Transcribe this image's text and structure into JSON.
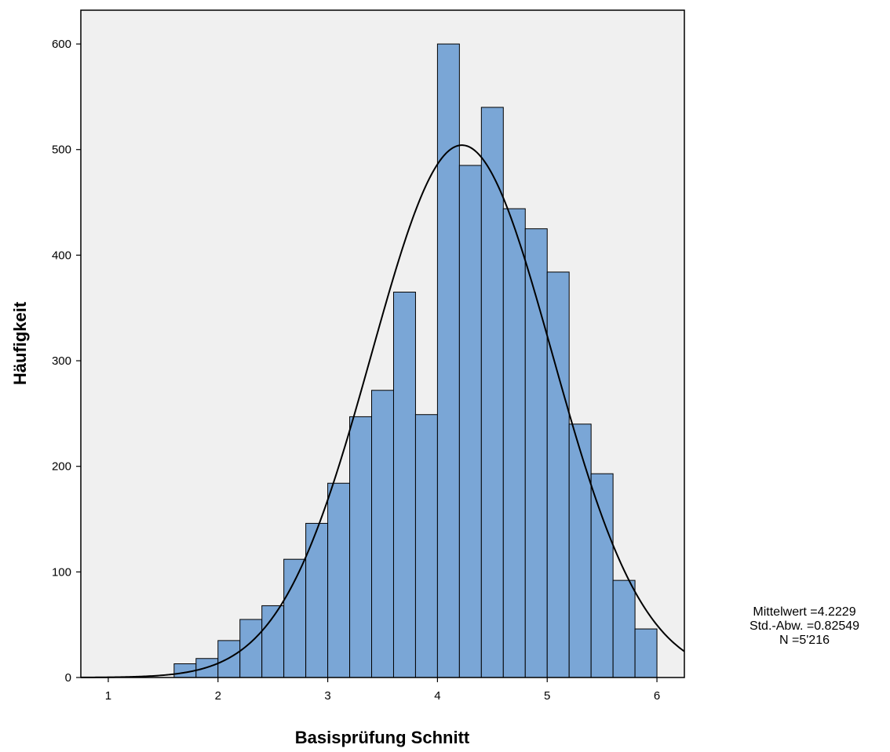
{
  "chart_data": {
    "type": "histogram",
    "title": "",
    "xlabel": "Basisprüfung Schnitt",
    "ylabel": "Häufigkeit",
    "xlim": [
      0.75,
      6.25
    ],
    "ylim": [
      0,
      632
    ],
    "xticks": [
      1,
      2,
      3,
      4,
      5,
      6
    ],
    "yticks": [
      0,
      100,
      200,
      300,
      400,
      500,
      600
    ],
    "grid": false,
    "bar_color": "#7aa6d6",
    "bar_edge_color": "#000000",
    "plot_background": "#f0f0f0",
    "bin_width": 0.2,
    "bins": [
      {
        "start": 1.6,
        "end": 1.8,
        "count": 13
      },
      {
        "start": 1.8,
        "end": 2.0,
        "count": 18
      },
      {
        "start": 2.0,
        "end": 2.2,
        "count": 35
      },
      {
        "start": 2.2,
        "end": 2.4,
        "count": 55
      },
      {
        "start": 2.4,
        "end": 2.6,
        "count": 68
      },
      {
        "start": 2.6,
        "end": 2.8,
        "count": 112
      },
      {
        "start": 2.8,
        "end": 3.0,
        "count": 146
      },
      {
        "start": 3.0,
        "end": 3.2,
        "count": 184
      },
      {
        "start": 3.2,
        "end": 3.4,
        "count": 247
      },
      {
        "start": 3.4,
        "end": 3.6,
        "count": 272
      },
      {
        "start": 3.6,
        "end": 3.8,
        "count": 365
      },
      {
        "start": 3.8,
        "end": 4.0,
        "count": 249
      },
      {
        "start": 4.0,
        "end": 4.2,
        "count": 600
      },
      {
        "start": 4.2,
        "end": 4.4,
        "count": 485
      },
      {
        "start": 4.4,
        "end": 4.6,
        "count": 540
      },
      {
        "start": 4.6,
        "end": 4.8,
        "count": 444
      },
      {
        "start": 4.8,
        "end": 5.0,
        "count": 425
      },
      {
        "start": 5.0,
        "end": 5.2,
        "count": 384
      },
      {
        "start": 5.2,
        "end": 5.4,
        "count": 240
      },
      {
        "start": 5.4,
        "end": 5.6,
        "count": 193
      },
      {
        "start": 5.6,
        "end": 5.8,
        "count": 92
      },
      {
        "start": 5.8,
        "end": 6.0,
        "count": 46
      }
    ],
    "normal_curve": {
      "mean": 4.2229,
      "sd": 0.82549,
      "n": 5216
    }
  },
  "stats": {
    "mean_label": "Mittelwert =4.2229",
    "sd_label": "Std.-Abw. =0.82549",
    "n_label": "N =5'216"
  }
}
